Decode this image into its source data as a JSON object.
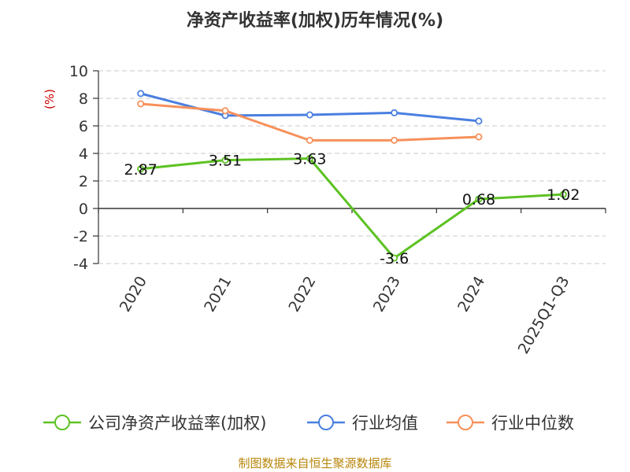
{
  "chart_data": {
    "type": "line",
    "title": "净资产收益率(加权)历年情况(%)",
    "ylabel": "(%)",
    "xlabel": "",
    "categories": [
      "2020",
      "2021",
      "2022",
      "2023",
      "2024",
      "2025Q1-Q3"
    ],
    "ylim": [
      -4,
      10
    ],
    "yticks": [
      -4,
      -2,
      0,
      2,
      4,
      6,
      8,
      10
    ],
    "ytick_labels": [
      "-4",
      "-2",
      "0",
      "2",
      "4",
      "6",
      "8",
      "10"
    ],
    "grid": true,
    "legend_position": "bottom",
    "series": [
      {
        "name": "公司净资产收益率(加权)",
        "color": "#5dc223",
        "values": [
          2.87,
          3.51,
          3.63,
          -3.6,
          0.68,
          1.02
        ],
        "labels": [
          "2.87",
          "3.51",
          "3.63",
          "-3.6",
          "0.68",
          "1.02"
        ]
      },
      {
        "name": "行业均值",
        "color": "#4a7fe0",
        "values": [
          8.35,
          6.75,
          6.8,
          6.95,
          6.35,
          null
        ]
      },
      {
        "name": "行业中位数",
        "color": "#f7905a",
        "values": [
          7.6,
          7.1,
          4.95,
          4.95,
          5.2,
          null
        ]
      }
    ],
    "source": "制图数据来自恒生聚源数据库"
  }
}
